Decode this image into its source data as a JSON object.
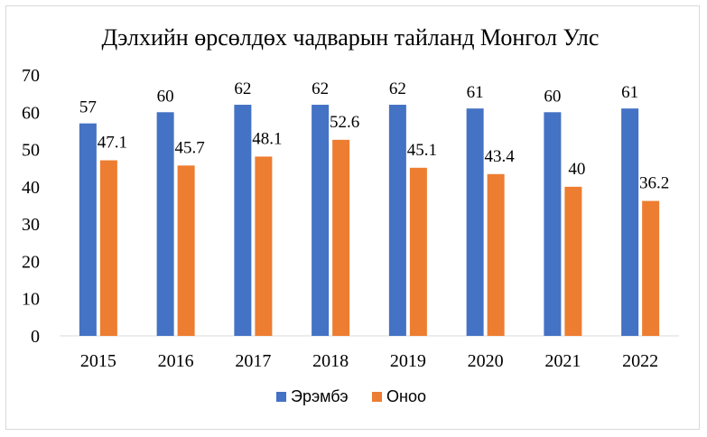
{
  "chart_data": {
    "type": "bar",
    "title": "Дэлхийн өрсөлдөх чадварын тайланд Монгол Улс",
    "xlabel": "",
    "ylabel": "",
    "categories": [
      "2015",
      "2016",
      "2017",
      "2018",
      "2019",
      "2020",
      "2021",
      "2022"
    ],
    "ylim": [
      0,
      70
    ],
    "yticks": [
      0,
      10,
      20,
      30,
      40,
      50,
      60,
      70
    ],
    "grid": false,
    "legend_position": "bottom",
    "series": [
      {
        "name": "Эрэмбэ",
        "color": "#4472c4",
        "values": [
          57,
          60,
          62,
          62,
          62,
          61,
          60,
          61
        ]
      },
      {
        "name": "Оноо",
        "color": "#ed7d31",
        "values": [
          47.1,
          45.7,
          48.1,
          52.6,
          45.1,
          43.4,
          40,
          36.2
        ]
      }
    ]
  }
}
